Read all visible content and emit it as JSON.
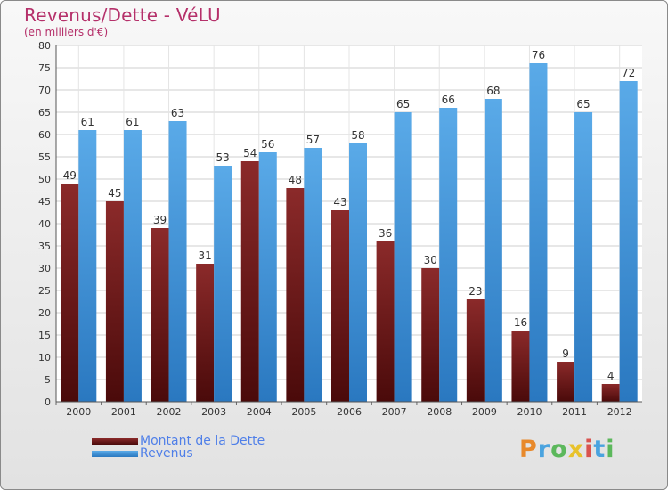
{
  "title": "Revenus/Dette - VéLU",
  "subtitle": "(en milliers d'€)",
  "logo": {
    "text": "Proxiti",
    "letters": [
      {
        "ch": "P",
        "color": "#e8892b"
      },
      {
        "ch": "r",
        "color": "#4aa3df"
      },
      {
        "ch": "o",
        "color": "#5cb85c"
      },
      {
        "ch": "x",
        "color": "#e8c22b"
      },
      {
        "ch": "i",
        "color": "#d9534f"
      },
      {
        "ch": "t",
        "color": "#4aa3df"
      },
      {
        "ch": "i",
        "color": "#5cb85c"
      }
    ]
  },
  "colors": {
    "dette_top": "#8b2a2a",
    "dette_bottom": "#4a0a0a",
    "revenus_top": "#5aaae8",
    "revenus_bottom": "#2a78c0",
    "title": "#b5306a",
    "legend_text": "#4f7fe8"
  },
  "chart_data": {
    "type": "bar",
    "title": "Revenus/Dette - VéLU",
    "subtitle": "(en milliers d'€)",
    "categories": [
      "2000",
      "2001",
      "2002",
      "2003",
      "2004",
      "2005",
      "2006",
      "2007",
      "2008",
      "2009",
      "2010",
      "2011",
      "2012"
    ],
    "series": [
      {
        "name": "Montant de la Dette",
        "values": [
          49,
          45,
          39,
          31,
          54,
          48,
          43,
          36,
          30,
          23,
          16,
          9,
          4
        ]
      },
      {
        "name": "Revenus",
        "values": [
          61,
          61,
          63,
          53,
          56,
          57,
          58,
          65,
          66,
          68,
          76,
          65,
          72
        ]
      }
    ],
    "ylim": [
      0,
      80
    ],
    "yticks": [
      0,
      5,
      10,
      15,
      20,
      25,
      30,
      35,
      40,
      45,
      50,
      55,
      60,
      65,
      70,
      75,
      80
    ],
    "grid": true,
    "legend": "bottom-left"
  }
}
